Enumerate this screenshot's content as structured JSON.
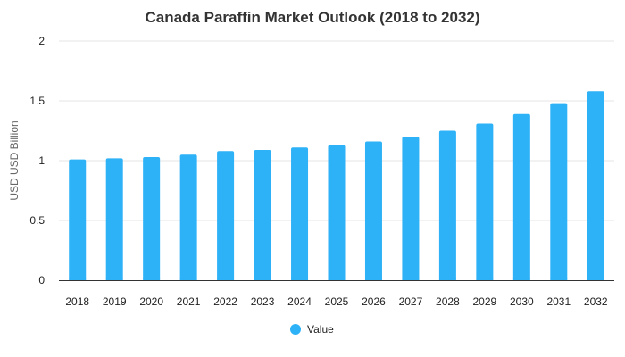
{
  "chart_data": {
    "type": "bar",
    "title": "Canada Paraffin Market Outlook (2018 to 2032)",
    "xlabel": "",
    "ylabel": "USD USD Billion",
    "categories": [
      "2018",
      "2019",
      "2020",
      "2021",
      "2022",
      "2023",
      "2024",
      "2025",
      "2026",
      "2027",
      "2028",
      "2029",
      "2030",
      "2031",
      "2032"
    ],
    "series": [
      {
        "name": "Value",
        "values": [
          1.01,
          1.02,
          1.03,
          1.05,
          1.08,
          1.09,
          1.11,
          1.13,
          1.16,
          1.2,
          1.25,
          1.31,
          1.39,
          1.48,
          1.58
        ],
        "color": "#2db1f7"
      }
    ],
    "ylim": [
      0,
      2
    ],
    "yticks": [
      "0",
      "0.5",
      "1",
      "1.5",
      "2"
    ],
    "grid": true,
    "legend_position": "bottom-center"
  }
}
